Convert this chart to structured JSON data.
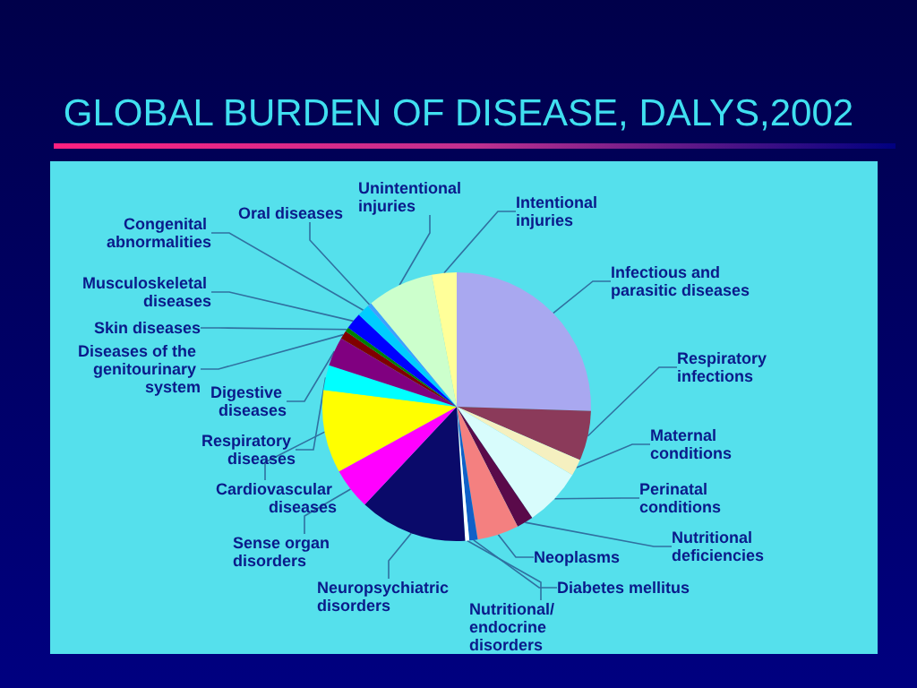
{
  "chart_data": {
    "type": "pie",
    "title": "GLOBAL BURDEN OF DISEASE, DALYS,2002",
    "categories": [
      "Infectious and parasitic diseases",
      "Respiratory infections",
      "Maternal conditions",
      "Perinatal conditions",
      "Nutritional deficiencies",
      "Neoplasms",
      "Diabetes mellitus",
      "Nutritional/endocrine disorders",
      "Neuropsychiatric disorders",
      "Sense organ disorders",
      "Cardiovascular diseases",
      "Respiratory diseases",
      "Digestive diseases",
      "Diseases of the genitourinary system",
      "Skin diseases",
      "Musculoskeletal diseases",
      "Congenital abnormalities",
      "Oral diseases",
      "Unintentional injuries",
      "Intentional injuries"
    ],
    "values": [
      25.5,
      6,
      2,
      7,
      2,
      5,
      1,
      0.5,
      13,
      5,
      10,
      3,
      3.5,
      1,
      0.5,
      2,
      1.5,
      0.5,
      8,
      3
    ],
    "colors": [
      "#a9a8f0",
      "#8b3a5a",
      "#f5f0c0",
      "#d8fcfc",
      "#5a0a4a",
      "#f48080",
      "#1060c8",
      "#ffffff",
      "#0a0a6a",
      "#ff00ff",
      "#ffff00",
      "#00ffff",
      "#800080",
      "#800000",
      "#008000",
      "#0000ff",
      "#00ccff",
      "#40a0ff",
      "#ccffcc",
      "#ffff99"
    ]
  }
}
